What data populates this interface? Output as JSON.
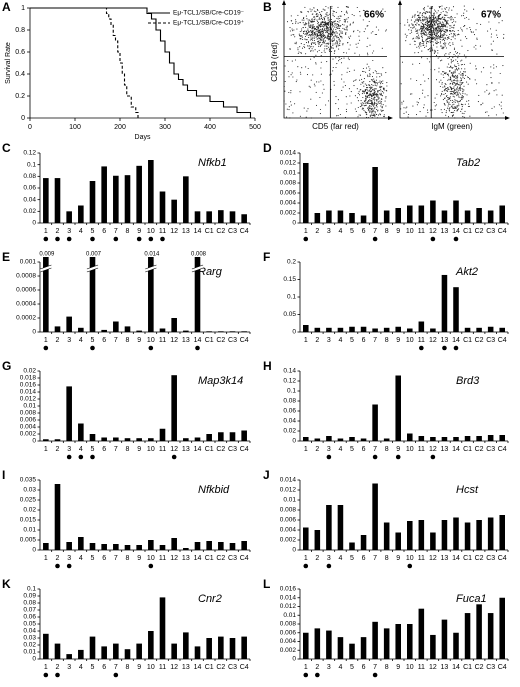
{
  "chart_data": [
    {
      "type": "line",
      "panel": "A",
      "xlabel": "Days",
      "ylabel": "Survival Rate",
      "xlim": [
        0,
        500
      ],
      "xticks": [
        0,
        100,
        200,
        300,
        400,
        500
      ],
      "ylim": [
        0,
        1
      ],
      "yticks": [
        0,
        0.2,
        0.4,
        0.6,
        0.8,
        1
      ],
      "series": [
        {
          "name": "Eμ-TCL1/SB/Cre-CD19⁻",
          "color": "#000000",
          "dash": false,
          "x": [
            0,
            255,
            260,
            270,
            280,
            290,
            300,
            310,
            320,
            330,
            340,
            350,
            370,
            400,
            430,
            460,
            490
          ],
          "values": [
            1,
            1,
            0.95,
            0.9,
            0.8,
            0.7,
            0.6,
            0.5,
            0.4,
            0.35,
            0.3,
            0.25,
            0.2,
            0.15,
            0.1,
            0.05,
            0
          ]
        },
        {
          "name": "Eμ-TCL1/SB/Cre-CD19⁺",
          "color": "#000000",
          "dash": true,
          "x": [
            0,
            165,
            170,
            175,
            180,
            185,
            190,
            195,
            200,
            205,
            210,
            215,
            225,
            235,
            240
          ],
          "values": [
            1,
            1,
            0.95,
            0.9,
            0.85,
            0.75,
            0.7,
            0.6,
            0.5,
            0.4,
            0.3,
            0.2,
            0.1,
            0.05,
            0
          ]
        }
      ]
    },
    {
      "type": "flow",
      "panel": "B",
      "ylabel": "CD19 (red)",
      "plots": [
        {
          "percent": "66%",
          "xlabel": "CD5 (far red)"
        },
        {
          "percent": "67%",
          "xlabel": "IgM (green)"
        }
      ]
    },
    {
      "type": "bar",
      "panel": "C",
      "title": "Nfkb1",
      "color": "#000000",
      "categories": [
        "1",
        "2",
        "3",
        "4",
        "5",
        "6",
        "7",
        "8",
        "9",
        "10",
        "11",
        "12",
        "13",
        "14",
        "C1",
        "C2",
        "C3",
        "C4"
      ],
      "values": [
        0.077,
        0.077,
        0.02,
        0.03,
        0.072,
        0.097,
        0.081,
        0.082,
        0.098,
        0.108,
        0.054,
        0.04,
        0.08,
        0.02,
        0.02,
        0.022,
        0.02,
        0.015
      ],
      "marked": [
        "1",
        "2",
        "3",
        "5",
        "7",
        "9",
        "10",
        "11"
      ],
      "ylim": [
        0,
        0.12
      ],
      "yticks": [
        0,
        0.02,
        0.04,
        0.06,
        0.08,
        0.1,
        0.12
      ]
    },
    {
      "type": "bar",
      "panel": "D",
      "title": "Tab2",
      "color": "#000000",
      "categories": [
        "1",
        "2",
        "3",
        "4",
        "5",
        "6",
        "7",
        "8",
        "9",
        "10",
        "11",
        "12",
        "13",
        "14",
        "C1",
        "C2",
        "C3",
        "C4"
      ],
      "values": [
        0.012,
        0.002,
        0.0025,
        0.0025,
        0.002,
        0.0015,
        0.0112,
        0.0025,
        0.003,
        0.0035,
        0.0035,
        0.0045,
        0.0025,
        0.0045,
        0.0025,
        0.003,
        0.0025,
        0.0035
      ],
      "marked": [
        "1",
        "7",
        "12",
        "14"
      ],
      "ylim": [
        0,
        0.014
      ],
      "yticks": [
        0,
        0.002,
        0.004,
        0.006,
        0.008,
        0.01,
        0.012,
        0.014
      ]
    },
    {
      "type": "bar",
      "panel": "E",
      "title": "Rarg",
      "color": "#000000",
      "categories": [
        "1",
        "2",
        "3",
        "4",
        "5",
        "6",
        "7",
        "8",
        "9",
        "10",
        "11",
        "12",
        "13",
        "14",
        "C1",
        "C2",
        "C3",
        "C4"
      ],
      "values": [
        0.009,
        8e-05,
        0.00022,
        6e-05,
        0.007,
        3e-05,
        0.00015,
        8e-05,
        2e-05,
        0.014,
        5e-05,
        0.0002,
        2e-05,
        0.008,
        1e-05,
        1e-05,
        1e-05,
        1e-05
      ],
      "value_labels": [
        "0.009",
        null,
        null,
        null,
        "0.007",
        null,
        null,
        null,
        null,
        "0.014",
        null,
        null,
        null,
        "0.008",
        null,
        null,
        null,
        null
      ],
      "marked": [
        "1",
        "5",
        "10",
        "14"
      ],
      "ylim": [
        0,
        0.001
      ],
      "yticks": [
        0,
        0.0002,
        0.0004,
        0.0006,
        0.0008,
        0.001
      ]
    },
    {
      "type": "bar",
      "panel": "F",
      "title": "Akt2",
      "color": "#000000",
      "categories": [
        "1",
        "2",
        "3",
        "4",
        "5",
        "6",
        "7",
        "8",
        "9",
        "10",
        "11",
        "12",
        "13",
        "14",
        "C1",
        "C2",
        "C3",
        "C4"
      ],
      "values": [
        0.02,
        0.012,
        0.012,
        0.012,
        0.015,
        0.015,
        0.01,
        0.012,
        0.015,
        0.01,
        0.03,
        0.01,
        0.163,
        0.128,
        0.012,
        0.012,
        0.015,
        0.012
      ],
      "marked": [
        "11",
        "13",
        "14"
      ],
      "ylim": [
        0,
        0.2
      ],
      "yticks": [
        0,
        0.05,
        0.1,
        0.15,
        0.2
      ]
    },
    {
      "type": "bar",
      "panel": "G",
      "title": "Map3k14",
      "color": "#000000",
      "categories": [
        "1",
        "2",
        "3",
        "4",
        "5",
        "6",
        "7",
        "8",
        "9",
        "10",
        "11",
        "12",
        "13",
        "14",
        "C1",
        "C2",
        "C3",
        "C4"
      ],
      "values": [
        0.0005,
        0.0005,
        0.0156,
        0.005,
        0.002,
        0.001,
        0.001,
        0.0008,
        0.0008,
        0.0008,
        0.0035,
        0.0188,
        0.0008,
        0.001,
        0.002,
        0.0025,
        0.0025,
        0.003
      ],
      "marked": [
        "3",
        "4",
        "5",
        "12"
      ],
      "ylim": [
        0,
        0.02
      ],
      "yticks": [
        0,
        0.002,
        0.004,
        0.006,
        0.008,
        0.01,
        0.012,
        0.014,
        0.016,
        0.018,
        0.02
      ]
    },
    {
      "type": "bar",
      "panel": "H",
      "title": "Brd3",
      "color": "#000000",
      "categories": [
        "1",
        "2",
        "3",
        "4",
        "5",
        "6",
        "7",
        "8",
        "9",
        "10",
        "11",
        "12",
        "13",
        "14",
        "C1",
        "C2",
        "C3",
        "C4"
      ],
      "values": [
        0.008,
        0.005,
        0.01,
        0.005,
        0.008,
        0.005,
        0.073,
        0.005,
        0.131,
        0.015,
        0.01,
        0.008,
        0.008,
        0.008,
        0.01,
        0.01,
        0.012,
        0.012
      ],
      "marked": [
        "3",
        "7",
        "9",
        "12"
      ],
      "ylim": [
        0,
        0.14
      ],
      "yticks": [
        0,
        0.02,
        0.04,
        0.06,
        0.08,
        0.1,
        0.12,
        0.14
      ]
    },
    {
      "type": "bar",
      "panel": "I",
      "title": "Nfkbid",
      "color": "#000000",
      "categories": [
        "1",
        "2",
        "3",
        "4",
        "5",
        "6",
        "7",
        "8",
        "9",
        "10",
        "11",
        "12",
        "13",
        "14",
        "C1",
        "C2",
        "C3",
        "C4"
      ],
      "values": [
        0.0035,
        0.033,
        0.004,
        0.0065,
        0.0035,
        0.003,
        0.003,
        0.0025,
        0.0025,
        0.005,
        0.0025,
        0.006,
        0.001,
        0.004,
        0.0045,
        0.004,
        0.0035,
        0.0045
      ],
      "marked": [
        "2",
        "3",
        "10"
      ],
      "ylim": [
        0,
        0.035
      ],
      "yticks": [
        0,
        0.005,
        0.01,
        0.015,
        0.02,
        0.025,
        0.03,
        0.035
      ]
    },
    {
      "type": "bar",
      "panel": "J",
      "title": "Hcst",
      "color": "#000000",
      "categories": [
        "1",
        "2",
        "3",
        "4",
        "5",
        "6",
        "7",
        "8",
        "9",
        "10",
        "11",
        "12",
        "13",
        "14",
        "C1",
        "C2",
        "C3",
        "C4"
      ],
      "values": [
        0.0045,
        0.004,
        0.009,
        0.009,
        0.0015,
        0.003,
        0.0133,
        0.0055,
        0.0035,
        0.0058,
        0.006,
        0.0035,
        0.006,
        0.0065,
        0.0055,
        0.006,
        0.0065,
        0.007
      ],
      "marked": [
        "1",
        "3",
        "10"
      ],
      "ylim": [
        0,
        0.014
      ],
      "yticks": [
        0,
        0.002,
        0.004,
        0.006,
        0.008,
        0.01,
        0.012,
        0.014
      ]
    },
    {
      "type": "bar",
      "panel": "K",
      "title": "Cnr2",
      "color": "#000000",
      "categories": [
        "1",
        "2",
        "3",
        "4",
        "5",
        "6",
        "7",
        "8",
        "9",
        "10",
        "11",
        "12",
        "13",
        "14",
        "C1",
        "C2",
        "C3",
        "C4"
      ],
      "values": [
        0.036,
        0.022,
        0.007,
        0.013,
        0.032,
        0.018,
        0.022,
        0.014,
        0.022,
        0.04,
        0.088,
        0.022,
        0.038,
        0.018,
        0.03,
        0.032,
        0.03,
        0.032
      ],
      "marked": [
        "1",
        "2",
        "7"
      ],
      "ylim": [
        0,
        0.1
      ],
      "yticks": [
        0,
        0.01,
        0.02,
        0.03,
        0.04,
        0.05,
        0.06,
        0.07,
        0.08,
        0.09,
        0.1
      ]
    },
    {
      "type": "bar",
      "panel": "L",
      "title": "Fuca1",
      "color": "#000000",
      "categories": [
        "1",
        "2",
        "3",
        "4",
        "5",
        "6",
        "7",
        "8",
        "9",
        "10",
        "11",
        "12",
        "13",
        "14",
        "C1",
        "C2",
        "C3",
        "C4"
      ],
      "values": [
        0.006,
        0.007,
        0.0065,
        0.005,
        0.0035,
        0.005,
        0.0085,
        0.007,
        0.008,
        0.008,
        0.0115,
        0.0055,
        0.009,
        0.006,
        0.0105,
        0.0125,
        0.0105,
        0.014
      ],
      "marked": [
        "1",
        "2",
        "7"
      ],
      "ylim": [
        0,
        0.016
      ],
      "yticks": [
        0,
        0.002,
        0.004,
        0.006,
        0.008,
        0.01,
        0.012,
        0.014,
        0.016
      ]
    }
  ]
}
